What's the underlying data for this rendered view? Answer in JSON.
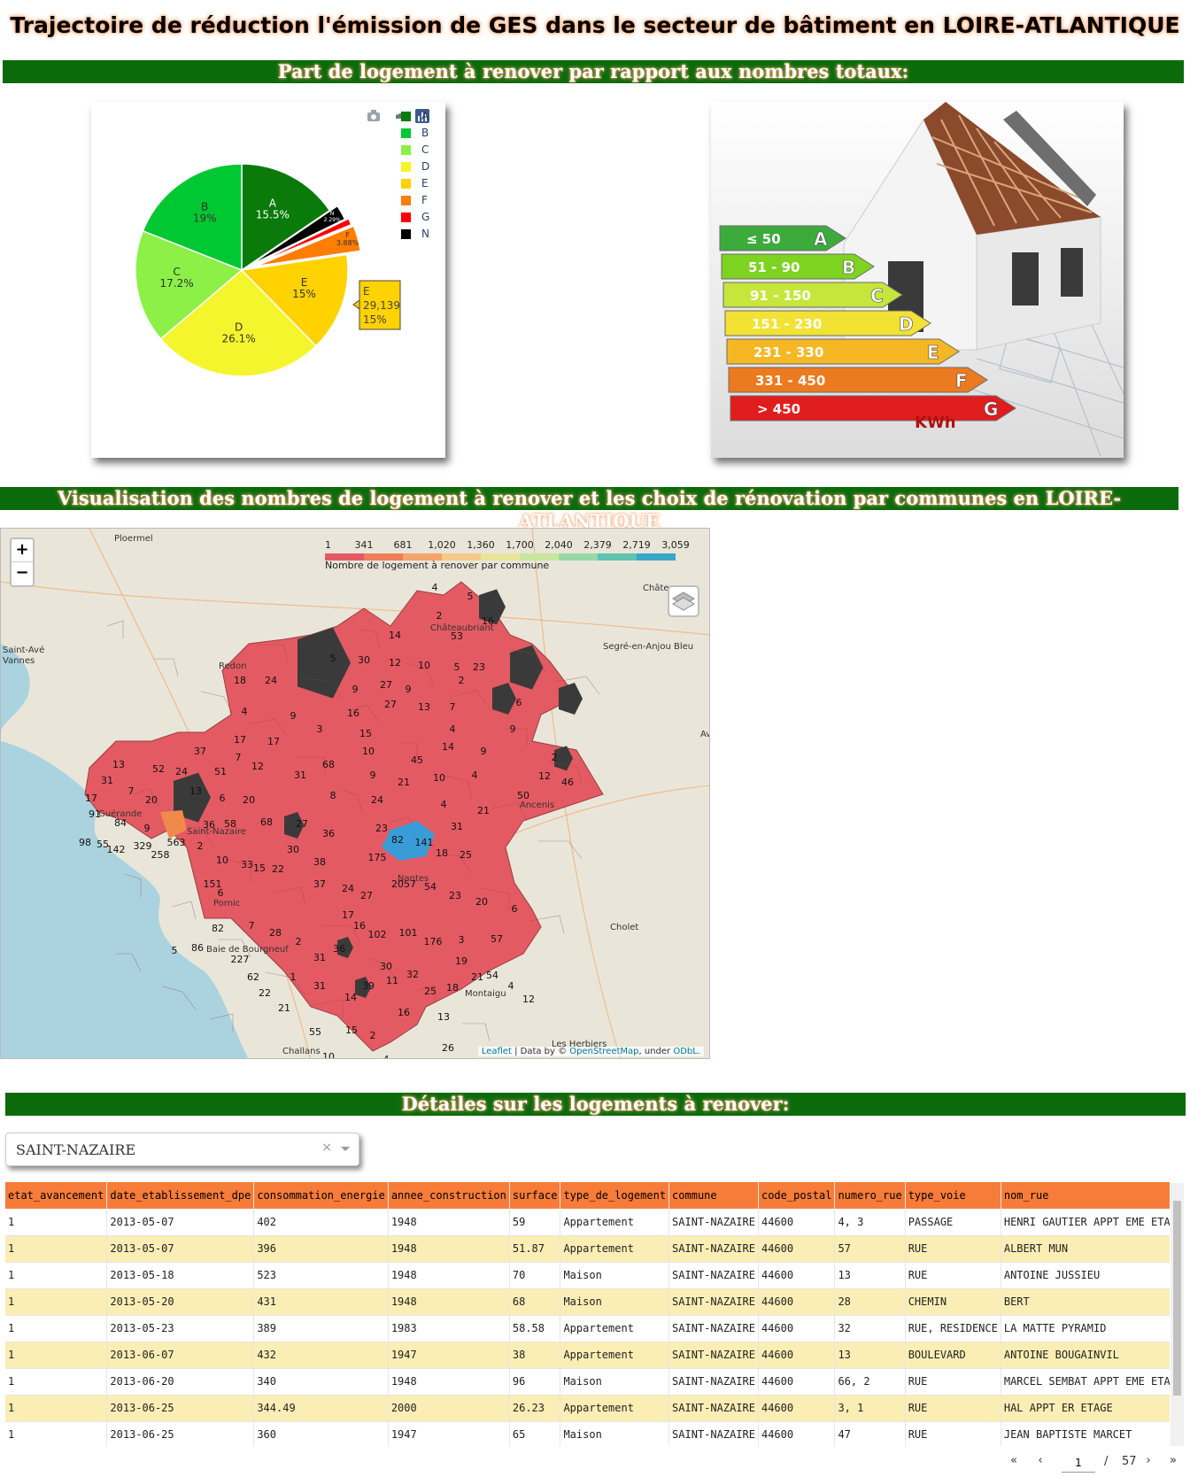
{
  "page": {
    "title": "Trajectoire de réduction l'émission de GES dans le secteur de bâtiment en LOIRE-ATLANTIQUE"
  },
  "sections": {
    "part_logement": "Part de logement à renover par rapport aux nombres totaux:",
    "visualisation": "Visualisation des nombres de logement à renover et les choix de rénovation par communes en LOIRE-ATLANTIQUE",
    "details": "Détailes sur les logements à renover:"
  },
  "chart_data": {
    "type": "pie",
    "categories": [
      "A",
      "B",
      "C",
      "D",
      "E",
      "F",
      "G",
      "N"
    ],
    "values": [
      15.5,
      19,
      17.2,
      26.1,
      15,
      3.88,
      1.0,
      2.29
    ],
    "value_unit": "%",
    "colors": [
      "#0a7a0a",
      "#00c832",
      "#8cf046",
      "#f5f52d",
      "#ffd200",
      "#ff7d00",
      "#ff0000",
      "#000000"
    ],
    "slice_labels": [
      "A\n15.5%",
      "B\n19%",
      "C\n17.2%",
      "D\n26.1%",
      "E\n15%",
      "F\n3.88%",
      "",
      "N\n2.29%"
    ],
    "hover": {
      "category": "E",
      "count": "29,139",
      "percent": "15%"
    },
    "legend_position": "top-right"
  },
  "house_image": {
    "labels": [
      "≤ 50",
      "51 - 90",
      "91 - 150",
      "151 - 230",
      "231 - 330",
      "331 - 450",
      "> 450"
    ],
    "letters": [
      "A",
      "B",
      "C",
      "D",
      "E",
      "F",
      "G"
    ],
    "colors": [
      "#3cab3c",
      "#7ed321",
      "#c6e63c",
      "#f2e233",
      "#f5b724",
      "#ec7a1f",
      "#e01d1d"
    ],
    "unit": "KWh"
  },
  "map": {
    "colorbar_ticks": [
      "1",
      "341",
      "681",
      "1,020",
      "1,360",
      "1,700",
      "2,040",
      "2,379",
      "2,719",
      "3,059"
    ],
    "colorbar_title": "Nombre de logement à renover par commune",
    "zoom_in": "+",
    "zoom_out": "−",
    "places": [
      "Ploermel",
      "Saint-Avé",
      "Vannes",
      "Redon",
      "Châteaubriant",
      "Segré-en-Anjou Bleu",
      "Château",
      "Av",
      "Nantes",
      "Saint-Nazaire",
      "Pornic",
      "Baie de Bourgneuf",
      "Cholet",
      "Montaigu",
      "Challans",
      "Les Herbiers",
      "Ancenis",
      "Guérande"
    ],
    "attribution_leaflet": "Leaflet",
    "attribution_text": " | Data by © ",
    "attribution_osm": "OpenStreetMap",
    "attribution_under": ", under ",
    "attribution_odbl": "ODbL."
  },
  "filter": {
    "selected": "SAINT-NAZAIRE",
    "clear": "×"
  },
  "table": {
    "columns": [
      "etat_avancement",
      "date_etablissement_dpe",
      "consommation_energie",
      "annee_construction",
      "surface",
      "type_de_logement",
      "commune",
      "code_postal",
      "numero_rue",
      "type_voie",
      "nom_rue"
    ],
    "rows": [
      [
        "1",
        "2013-05-07",
        "402",
        "1948",
        "59",
        "Appartement",
        "SAINT-NAZAIRE",
        "44600",
        "4, 3",
        "PASSAGE",
        "HENRI GAUTIER APPT EME ETAGE"
      ],
      [
        "1",
        "2013-05-07",
        "396",
        "1948",
        "51.87",
        "Appartement",
        "SAINT-NAZAIRE",
        "44600",
        "57",
        "RUE",
        "ALBERT MUN"
      ],
      [
        "1",
        "2013-05-18",
        "523",
        "1948",
        "70",
        "Maison",
        "SAINT-NAZAIRE",
        "44600",
        "13",
        "RUE",
        "ANTOINE JUSSIEU"
      ],
      [
        "1",
        "2013-05-20",
        "431",
        "1948",
        "68",
        "Maison",
        "SAINT-NAZAIRE",
        "44600",
        "28",
        "CHEMIN",
        "BERT"
      ],
      [
        "1",
        "2013-05-23",
        "389",
        "1983",
        "58.58",
        "Appartement",
        "SAINT-NAZAIRE",
        "44600",
        "32",
        "RUE, RESIDENCE",
        "LA MATTE PYRAMID"
      ],
      [
        "1",
        "2013-06-07",
        "432",
        "1947",
        "38",
        "Appartement",
        "SAINT-NAZAIRE",
        "44600",
        "13",
        "BOULEVARD",
        "ANTOINE BOUGAINVIL"
      ],
      [
        "1",
        "2013-06-20",
        "340",
        "1948",
        "96",
        "Maison",
        "SAINT-NAZAIRE",
        "44600",
        "66, 2",
        "RUE",
        "MARCEL SEMBAT APPT EME ETAGE"
      ],
      [
        "1",
        "2013-06-25",
        "344.49",
        "2000",
        "26.23",
        "Appartement",
        "SAINT-NAZAIRE",
        "44600",
        "3, 1",
        "RUE",
        "HAL APPT ER ETAGE"
      ],
      [
        "1",
        "2013-06-25",
        "360",
        "1947",
        "65",
        "Maison",
        "SAINT-NAZAIRE",
        "44600",
        "47",
        "RUE",
        "JEAN BAPTISTE MARCET"
      ]
    ]
  },
  "pager": {
    "first": "«",
    "prev": "‹",
    "current": "1",
    "separator": "/",
    "total": "57",
    "next": "›",
    "last": "»"
  }
}
